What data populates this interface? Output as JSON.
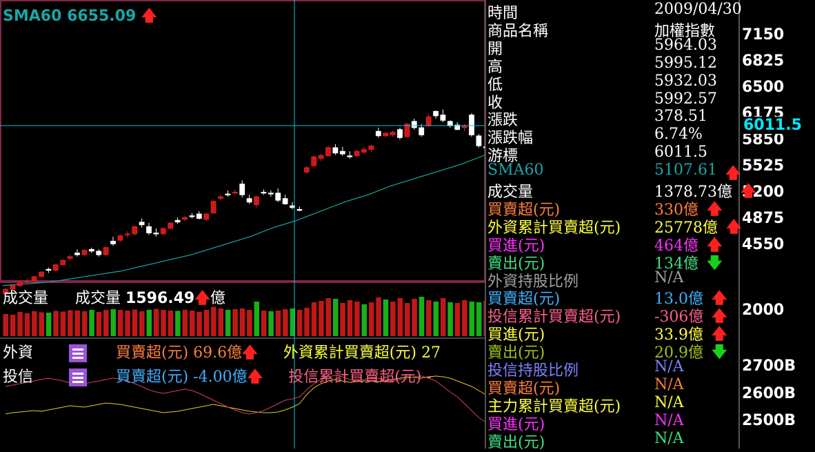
{
  "chart": {
    "sma_label": "SMA60",
    "sma_value": "6655.09",
    "price_scale": [
      "7150",
      "6825",
      "6500",
      "6175",
      "5850",
      "5525",
      "5200",
      "4875",
      "4550"
    ],
    "cursor_price": "6011.5",
    "volume_scale": "2000",
    "indicator_scale": [
      "2700B",
      "2600B",
      "2500B"
    ]
  },
  "volume": {
    "label": "成交量",
    "label2": "成交量",
    "value": "1596.49",
    "unit": "億"
  },
  "foreign": {
    "name": "外資",
    "net_label": "買賣超(元)",
    "net_value": "69.6億",
    "cum_label": "外資累計買賣超(元)",
    "cum_value": "27"
  },
  "trust": {
    "name": "投信",
    "net_label": "買賣超(元)",
    "net_value": "-4.00億",
    "cum_label": "投信累計買賣超(元)",
    "cum_value": "-"
  },
  "info": [
    {
      "label": "時間",
      "value": "2009/04/30",
      "lc": "#ffffff",
      "vc": "#ffffff",
      "arrow": ""
    },
    {
      "label": "商品名稱",
      "value": "加權指數",
      "lc": "#ffffff",
      "vc": "#ffffff",
      "arrow": ""
    },
    {
      "label": "開",
      "value": "5964.03",
      "lc": "#ffffff",
      "vc": "#ffffff",
      "arrow": ""
    },
    {
      "label": "高",
      "value": "5995.12",
      "lc": "#ffffff",
      "vc": "#ffffff",
      "arrow": ""
    },
    {
      "label": "低",
      "value": "5932.03",
      "lc": "#ffffff",
      "vc": "#ffffff",
      "arrow": ""
    },
    {
      "label": "收",
      "value": "5992.57",
      "lc": "#ffffff",
      "vc": "#ffffff",
      "arrow": ""
    },
    {
      "label": "漲跌",
      "value": "378.51",
      "lc": "#ffffff",
      "vc": "#ffffff",
      "arrow": ""
    },
    {
      "label": "漲跌幅",
      "value": "6.74%",
      "lc": "#ffffff",
      "vc": "#ffffff",
      "arrow": ""
    },
    {
      "label": "游標",
      "value": "6011.5",
      "lc": "#ffffff",
      "vc": "#ffffff",
      "arrow": ""
    },
    {
      "label": "SMA60",
      "value": "5107.61",
      "lc": "#1aa6a6",
      "vc": "#1aa6a6",
      "arrow": "up"
    },
    {
      "label": "成交量",
      "value": "1378.73億",
      "lc": "#ffffff",
      "vc": "#ffffff",
      "arrow": "up"
    },
    {
      "label": "買賣超(元)",
      "value": "330億",
      "lc": "#ff7f3f",
      "vc": "#ff7f3f",
      "arrow": "up"
    },
    {
      "label": "外資累計買賣超(元)",
      "value": "25778億",
      "lc": "#ffff40",
      "vc": "#ffff40",
      "arrow": "up"
    },
    {
      "label": "買進(元)",
      "value": "464億",
      "lc": "#ff30ff",
      "vc": "#ff30ff",
      "arrow": "up"
    },
    {
      "label": "賣出(元)",
      "value": "134億",
      "lc": "#40e080",
      "vc": "#40e080",
      "arrow": "down"
    },
    {
      "label": "外資持股比例",
      "value": "N/A",
      "lc": "#a0a0a0",
      "vc": "#a0a0a0",
      "arrow": ""
    },
    {
      "label": "買賣超(元)",
      "value": "13.0億",
      "lc": "#40b0ff",
      "vc": "#40b0ff",
      "arrow": "up"
    },
    {
      "label": "投信累計買賣超(元)",
      "value": "-306億",
      "lc": "#ff6088",
      "vc": "#ff6088",
      "arrow": "up"
    },
    {
      "label": "買進(元)",
      "value": "33.9億",
      "lc": "#ffff40",
      "vc": "#ffff40",
      "arrow": "up"
    },
    {
      "label": "賣出(元)",
      "value": "20.9億",
      "lc": "#a0c020",
      "vc": "#a0c020",
      "arrow": "down"
    },
    {
      "label": "投信持股比例",
      "value": "N/A",
      "lc": "#8080ff",
      "vc": "#8080ff",
      "arrow": ""
    },
    {
      "label": "買賣超(元)",
      "value": "N/A",
      "lc": "#ff7f3f",
      "vc": "#ff7f3f",
      "arrow": ""
    },
    {
      "label": "主力累計買賣超(元)",
      "value": "N/A",
      "lc": "#ffff40",
      "vc": "#ffff40",
      "arrow": ""
    },
    {
      "label": "買進(元)",
      "value": "N/A",
      "lc": "#ff30ff",
      "vc": "#ff30ff",
      "arrow": ""
    },
    {
      "label": "賣出(元)",
      "value": "N/A",
      "lc": "#40e080",
      "vc": "#40e080",
      "arrow": ""
    }
  ],
  "chart_data": {
    "type": "candlestick",
    "period_end": "2009/04/30",
    "price_ylim": [
      4400,
      7250
    ],
    "candles": [
      [
        4470,
        4540,
        4440,
        4520
      ],
      [
        4520,
        4580,
        4500,
        4560
      ],
      [
        4560,
        4620,
        4540,
        4600
      ],
      [
        4600,
        4640,
        4580,
        4610
      ],
      [
        4610,
        4670,
        4600,
        4660
      ],
      [
        4660,
        4720,
        4650,
        4710
      ],
      [
        4740,
        4760,
        4700,
        4730
      ],
      [
        4730,
        4800,
        4720,
        4790
      ],
      [
        4790,
        4850,
        4780,
        4840
      ],
      [
        4860,
        4900,
        4830,
        4880
      ],
      [
        4920,
        4960,
        4880,
        4900
      ],
      [
        4900,
        4960,
        4890,
        4950
      ],
      [
        4960,
        4980,
        4920,
        4940
      ],
      [
        4940,
        4960,
        4880,
        4900
      ],
      [
        4900,
        4990,
        4890,
        4980
      ],
      [
        5050,
        5100,
        5000,
        5020
      ],
      [
        5060,
        5120,
        5040,
        5110
      ],
      [
        5120,
        5160,
        5090,
        5130
      ],
      [
        5130,
        5220,
        5110,
        5210
      ],
      [
        5260,
        5300,
        5200,
        5230
      ],
      [
        5210,
        5250,
        5120,
        5140
      ],
      [
        5140,
        5190,
        5100,
        5130
      ],
      [
        5130,
        5200,
        5120,
        5190
      ],
      [
        5190,
        5260,
        5180,
        5250
      ],
      [
        5280,
        5310,
        5240,
        5260
      ],
      [
        5290,
        5330,
        5270,
        5310
      ],
      [
        5330,
        5360,
        5300,
        5320
      ],
      [
        5350,
        5380,
        5290,
        5300
      ],
      [
        5290,
        5360,
        5270,
        5350
      ],
      [
        5360,
        5500,
        5350,
        5490
      ],
      [
        5520,
        5560,
        5500,
        5540
      ],
      [
        5570,
        5610,
        5540,
        5560
      ],
      [
        5580,
        5620,
        5570,
        5590
      ],
      [
        5680,
        5720,
        5530,
        5560
      ],
      [
        5520,
        5560,
        5460,
        5480
      ],
      [
        5450,
        5550,
        5420,
        5540
      ],
      [
        5590,
        5620,
        5560,
        5580
      ],
      [
        5580,
        5610,
        5540,
        5570
      ],
      [
        5580,
        5630,
        5480,
        5500
      ],
      [
        5520,
        5560,
        5450,
        5460
      ],
      [
        5440,
        5480,
        5400,
        5420
      ],
      [
        5400,
        5430,
        5380,
        5390
      ],
      [
        5810,
        5880,
        5790,
        5860
      ],
      [
        5880,
        5990,
        5870,
        5980
      ],
      [
        5960,
        6010,
        5930,
        5995
      ],
      [
        5990,
        6100,
        5980,
        6080
      ],
      [
        6080,
        6120,
        6000,
        6020
      ],
      [
        6040,
        6090,
        5990,
        6010
      ],
      [
        5990,
        6040,
        5960,
        5980
      ],
      [
        5990,
        6060,
        5980,
        6040
      ],
      [
        6030,
        6090,
        6010,
        6060
      ],
      [
        6060,
        6110,
        6030,
        6100
      ],
      [
        6260,
        6300,
        6190,
        6210
      ],
      [
        6210,
        6250,
        6190,
        6240
      ],
      [
        6220,
        6270,
        6200,
        6250
      ],
      [
        6280,
        6300,
        6170,
        6190
      ],
      [
        6200,
        6350,
        6190,
        6340
      ],
      [
        6370,
        6400,
        6280,
        6300
      ],
      [
        6300,
        6340,
        6200,
        6220
      ],
      [
        6320,
        6450,
        6310,
        6420
      ],
      [
        6480,
        6490,
        6400,
        6430
      ],
      [
        6440,
        6500,
        6360,
        6380
      ],
      [
        6370,
        6380,
        6300,
        6320
      ],
      [
        6330,
        6360,
        6270,
        6280
      ],
      [
        6300,
        6340,
        6260,
        6320
      ],
      [
        6440,
        6460,
        6200,
        6220
      ],
      [
        6210,
        6230,
        6080,
        6100
      ],
      [
        6090,
        6130,
        6040,
        6080
      ]
    ],
    "sma60": [
      4560,
      4570,
      4580,
      4590,
      4600,
      4620,
      4640,
      4660,
      4680,
      4700,
      4720,
      4750,
      4780,
      4810,
      4840,
      4870,
      4900,
      4940,
      4980,
      5020,
      5060,
      5100,
      5150,
      5200,
      5240,
      5280,
      5330,
      5380,
      5430,
      5480,
      5520,
      5560,
      5610,
      5660,
      5700,
      5740,
      5780,
      5820,
      5860,
      5900,
      5950,
      6000
    ],
    "volume": [
      640,
      620,
      700,
      660,
      720,
      690,
      680,
      730,
      710,
      750,
      740,
      720,
      760,
      700,
      760,
      780,
      760,
      740,
      770,
      720,
      760,
      790,
      760,
      740,
      730,
      760,
      740,
      700,
      760,
      850,
      800,
      760,
      780,
      800,
      760,
      1000,
      740,
      720,
      740,
      780,
      800,
      760,
      820,
      980,
      1020,
      1100,
      1080,
      960,
      1040,
      1000,
      920,
      980,
      1120,
      1060,
      1000,
      1100,
      960,
      1080,
      1140,
      1040,
      1000,
      1100,
      980,
      960,
      1040,
      1000,
      980,
      1020
    ],
    "volume_up": [
      1,
      1,
      1,
      1,
      1,
      1,
      0,
      1,
      1,
      1,
      1,
      1,
      0,
      1,
      1,
      0,
      1,
      1,
      1,
      1,
      0,
      1,
      1,
      1,
      0,
      1,
      1,
      1,
      1,
      1,
      1,
      0,
      1,
      1,
      1,
      0,
      1,
      0,
      1,
      1,
      0,
      1,
      1,
      1,
      1,
      1,
      0,
      1,
      1,
      1,
      0,
      1,
      1,
      0,
      1,
      1,
      1,
      1,
      0,
      1,
      0,
      1,
      0,
      1,
      1,
      0,
      0,
      1
    ]
  }
}
